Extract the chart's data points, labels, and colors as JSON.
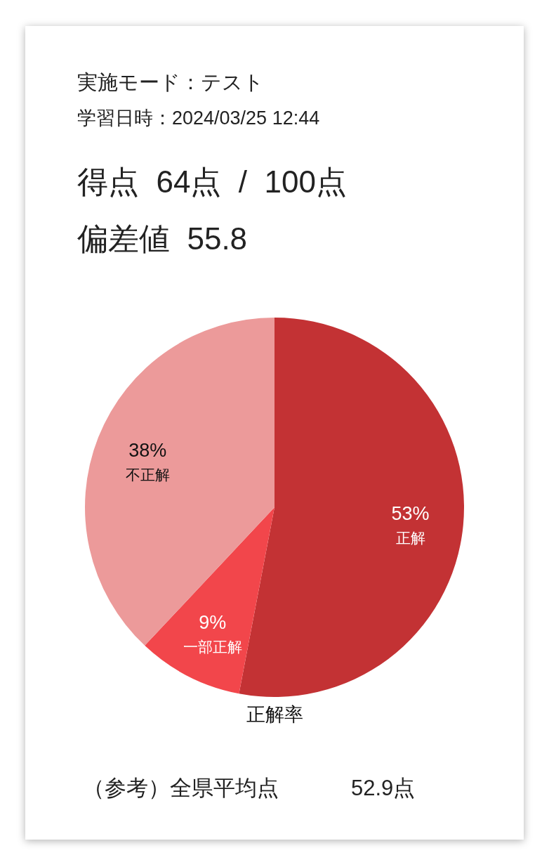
{
  "chart_data": {
    "type": "pie",
    "categories": [
      "正解",
      "一部正解",
      "不正解"
    ],
    "values": [
      53,
      9,
      38
    ],
    "colors": [
      "#c33234",
      "#f2464b",
      "#ec9a9a"
    ],
    "value_labels": [
      "53%",
      "9%",
      "38%"
    ],
    "xlabel": "正解率",
    "annotations": [
      "実施モード：テスト",
      "学習日時：2024/03/25 12:44",
      "得点  64点  /  100点",
      "偏差値  55.8",
      "（参考）全県平均点",
      "52.9点"
    ]
  }
}
